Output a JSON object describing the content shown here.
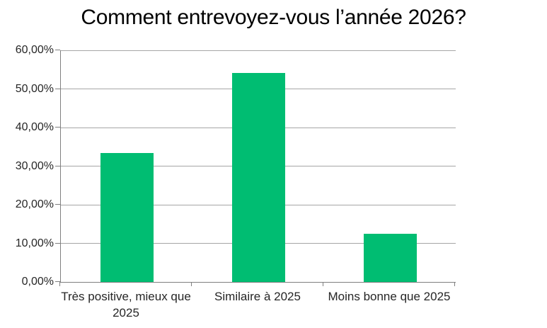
{
  "title": "Comment entrevoyez-vous l’année 2026?",
  "colors": {
    "bar": "#00bd72",
    "gridline": "#a6a6a6",
    "axis": "#7f7f7f",
    "tick_label": "#262626",
    "title": "#000000",
    "background": "#ffffff"
  },
  "chart_data": {
    "type": "bar",
    "title": "Comment entrevoyez-vous l’année 2026?",
    "categories": [
      "Très positive, mieux que 2025",
      "Similaire à 2025",
      "Moins bonne que 2025"
    ],
    "values": [
      33.33,
      54.17,
      12.5
    ],
    "value_unit": "%",
    "xlabel": "",
    "ylabel": "",
    "ylim": [
      0,
      60
    ],
    "ytick_step": 10,
    "ytick_labels": [
      "0,00%",
      "10,00%",
      "20,00%",
      "30,00%",
      "40,00%",
      "50,00%",
      "60,00%"
    ],
    "grid": true,
    "legend": false,
    "legend_position": "none"
  }
}
